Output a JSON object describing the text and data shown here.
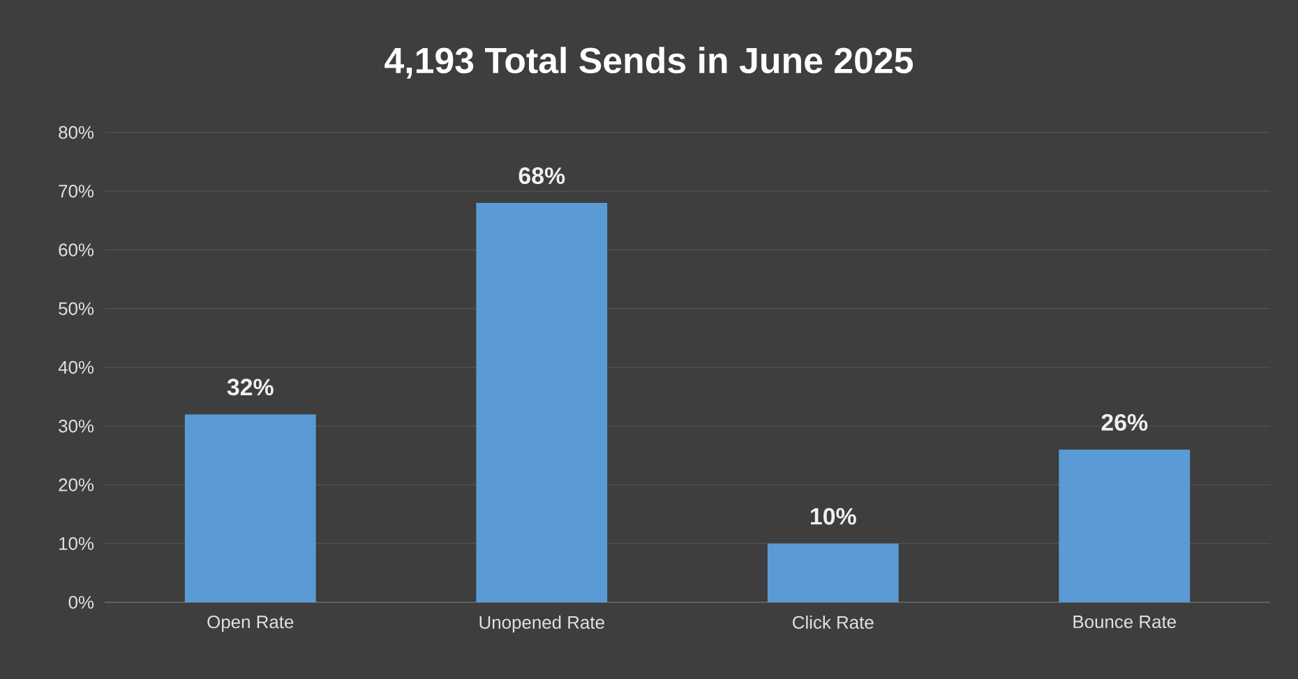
{
  "chart_data": {
    "type": "bar",
    "title": "4,193 Total Sends in June 2025",
    "categories": [
      "Open Rate",
      "Unopened Rate",
      "Click Rate",
      "Bounce Rate"
    ],
    "values": [
      32,
      68,
      10,
      26
    ],
    "value_labels": [
      "32%",
      "68%",
      "10%",
      "26%"
    ],
    "color": "#5b9bd5",
    "ylim": [
      0,
      80
    ],
    "yticks": [
      {
        "value": 0,
        "label": "0%"
      },
      {
        "value": 10,
        "label": "10%"
      },
      {
        "value": 20,
        "label": "20%"
      },
      {
        "value": 30,
        "label": "30%"
      },
      {
        "value": 40,
        "label": "40%"
      },
      {
        "value": 50,
        "label": "50%"
      },
      {
        "value": 60,
        "label": "60%"
      },
      {
        "value": 70,
        "label": "70%"
      },
      {
        "value": 80,
        "label": "80%"
      }
    ],
    "grid": "y"
  }
}
